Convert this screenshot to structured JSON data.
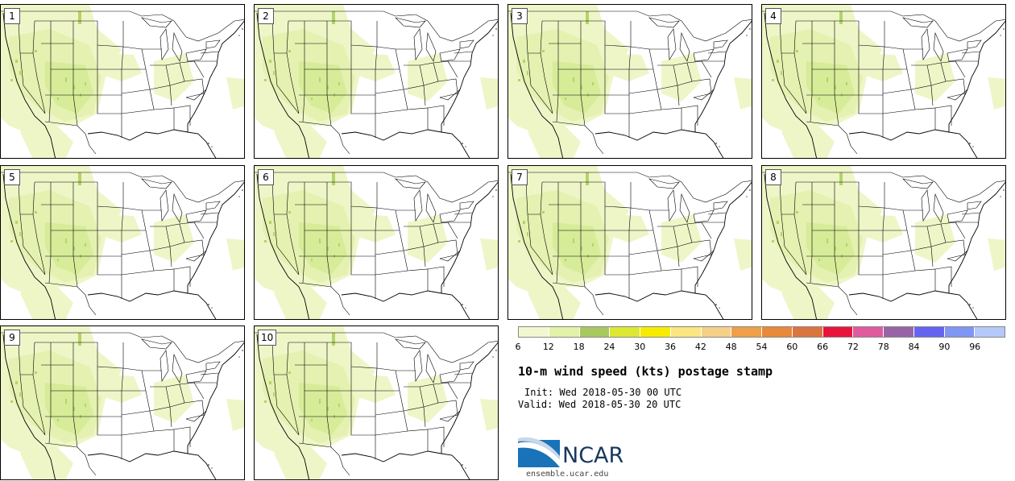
{
  "panels": [
    {
      "label": "1"
    },
    {
      "label": "2"
    },
    {
      "label": "3"
    },
    {
      "label": "4"
    },
    {
      "label": "5"
    },
    {
      "label": "6"
    },
    {
      "label": "7"
    },
    {
      "label": "8"
    },
    {
      "label": "9"
    },
    {
      "label": "10"
    }
  ],
  "colorbar": {
    "colors": [
      "#f2f7d0",
      "#e2f2a8",
      "#a8c860",
      "#dde832",
      "#f7ec00",
      "#fbe680",
      "#f5d088",
      "#ee9f47",
      "#e88a3a",
      "#db7540",
      "#e8143c",
      "#e05a9e",
      "#9765a6",
      "#6464f0",
      "#7f96f5",
      "#b4c8fa"
    ],
    "ticks": [
      "6",
      "12",
      "18",
      "24",
      "30",
      "36",
      "42",
      "48",
      "54",
      "60",
      "66",
      "72",
      "78",
      "84",
      "90",
      "96"
    ]
  },
  "title": "10-m wind speed (kts) postage stamp",
  "init": "Init: Wed 2018-05-30 00 UTC",
  "valid": "Valid: Wed 2018-05-30 20 UTC",
  "logo": {
    "text": "NCAR",
    "url": "ensemble.ucar.edu",
    "colors": {
      "blue": "#1a73b8",
      "navy": "#18385f"
    }
  },
  "map_colors": {
    "light": "#eef6c8",
    "medium": "#dcefa0",
    "dark": "#b4d468",
    "border": "#000000"
  }
}
